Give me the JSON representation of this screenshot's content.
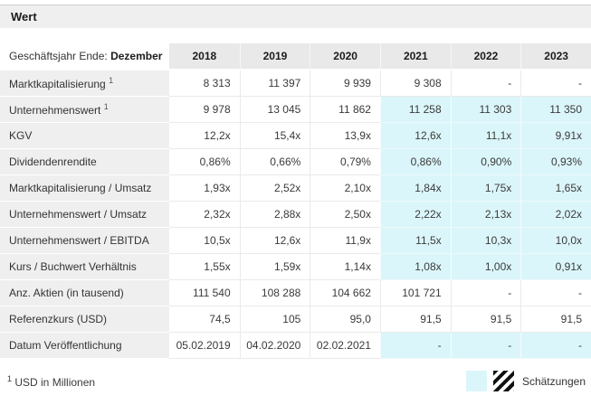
{
  "panel": {
    "title": "Wert"
  },
  "table": {
    "fiscal_label": "Geschäftsjahr Ende: ",
    "fiscal_label_bold": "Dezember",
    "years": [
      "2018",
      "2019",
      "2020",
      "2021",
      "2022",
      "2023"
    ],
    "rows": [
      {
        "label": "Marktkapitalisierung",
        "sup": "1",
        "values": [
          "8 313",
          "11 397",
          "9 939",
          "9 308",
          "-",
          "-"
        ],
        "est": [
          false,
          false,
          false,
          false,
          false,
          false
        ]
      },
      {
        "label": "Unternehmenswert",
        "sup": "1",
        "values": [
          "9 978",
          "13 045",
          "11 862",
          "11 258",
          "11 303",
          "11 350"
        ],
        "est": [
          false,
          false,
          false,
          true,
          true,
          true
        ]
      },
      {
        "label": "KGV",
        "values": [
          "12,2x",
          "15,4x",
          "13,9x",
          "12,6x",
          "11,1x",
          "9,91x"
        ],
        "est": [
          false,
          false,
          false,
          true,
          true,
          true
        ]
      },
      {
        "label": "Dividendenrendite",
        "values": [
          "0,86%",
          "0,66%",
          "0,79%",
          "0,86%",
          "0,90%",
          "0,93%"
        ],
        "est": [
          false,
          false,
          false,
          true,
          true,
          true
        ]
      },
      {
        "label": "Marktkapitalisierung / Umsatz",
        "values": [
          "1,93x",
          "2,52x",
          "2,10x",
          "1,84x",
          "1,75x",
          "1,65x"
        ],
        "est": [
          false,
          false,
          false,
          true,
          true,
          true
        ]
      },
      {
        "label": "Unternehmenswert / Umsatz",
        "values": [
          "2,32x",
          "2,88x",
          "2,50x",
          "2,22x",
          "2,13x",
          "2,02x"
        ],
        "est": [
          false,
          false,
          false,
          true,
          true,
          true
        ]
      },
      {
        "label": "Unternehmenswert / EBITDA",
        "values": [
          "10,5x",
          "12,6x",
          "11,9x",
          "11,5x",
          "10,3x",
          "10,0x"
        ],
        "est": [
          false,
          false,
          false,
          true,
          true,
          true
        ]
      },
      {
        "label": "Kurs / Buchwert Verhältnis",
        "values": [
          "1,55x",
          "1,59x",
          "1,14x",
          "1,08x",
          "1,00x",
          "0,91x"
        ],
        "est": [
          false,
          false,
          false,
          true,
          true,
          true
        ]
      },
      {
        "label": "Anz. Aktien (in tausend)",
        "values": [
          "111 540",
          "108 288",
          "104 662",
          "101 721",
          "-",
          "-"
        ],
        "est": [
          false,
          false,
          false,
          false,
          false,
          false
        ]
      },
      {
        "label": "Referenzkurs (USD)",
        "values": [
          "74,5",
          "105",
          "95,0",
          "91,5",
          "91,5",
          "91,5"
        ],
        "est": [
          false,
          false,
          false,
          false,
          false,
          false
        ]
      },
      {
        "label": "Datum Veröffentlichung",
        "values": [
          "05.02.2019",
          "04.02.2020",
          "02.02.2021",
          "-",
          "-",
          "-"
        ],
        "est": [
          false,
          false,
          false,
          true,
          true,
          true
        ]
      }
    ]
  },
  "footer": {
    "footnote_sup": "1",
    "footnote_text": " USD in Millionen",
    "legend_label": "Schätzungen"
  },
  "colors": {
    "estimate_bg": "#dbf6fa",
    "header_bg": "#e9e9e9",
    "label_bg": "#efefef",
    "titlebar_bg": "#efefef"
  }
}
